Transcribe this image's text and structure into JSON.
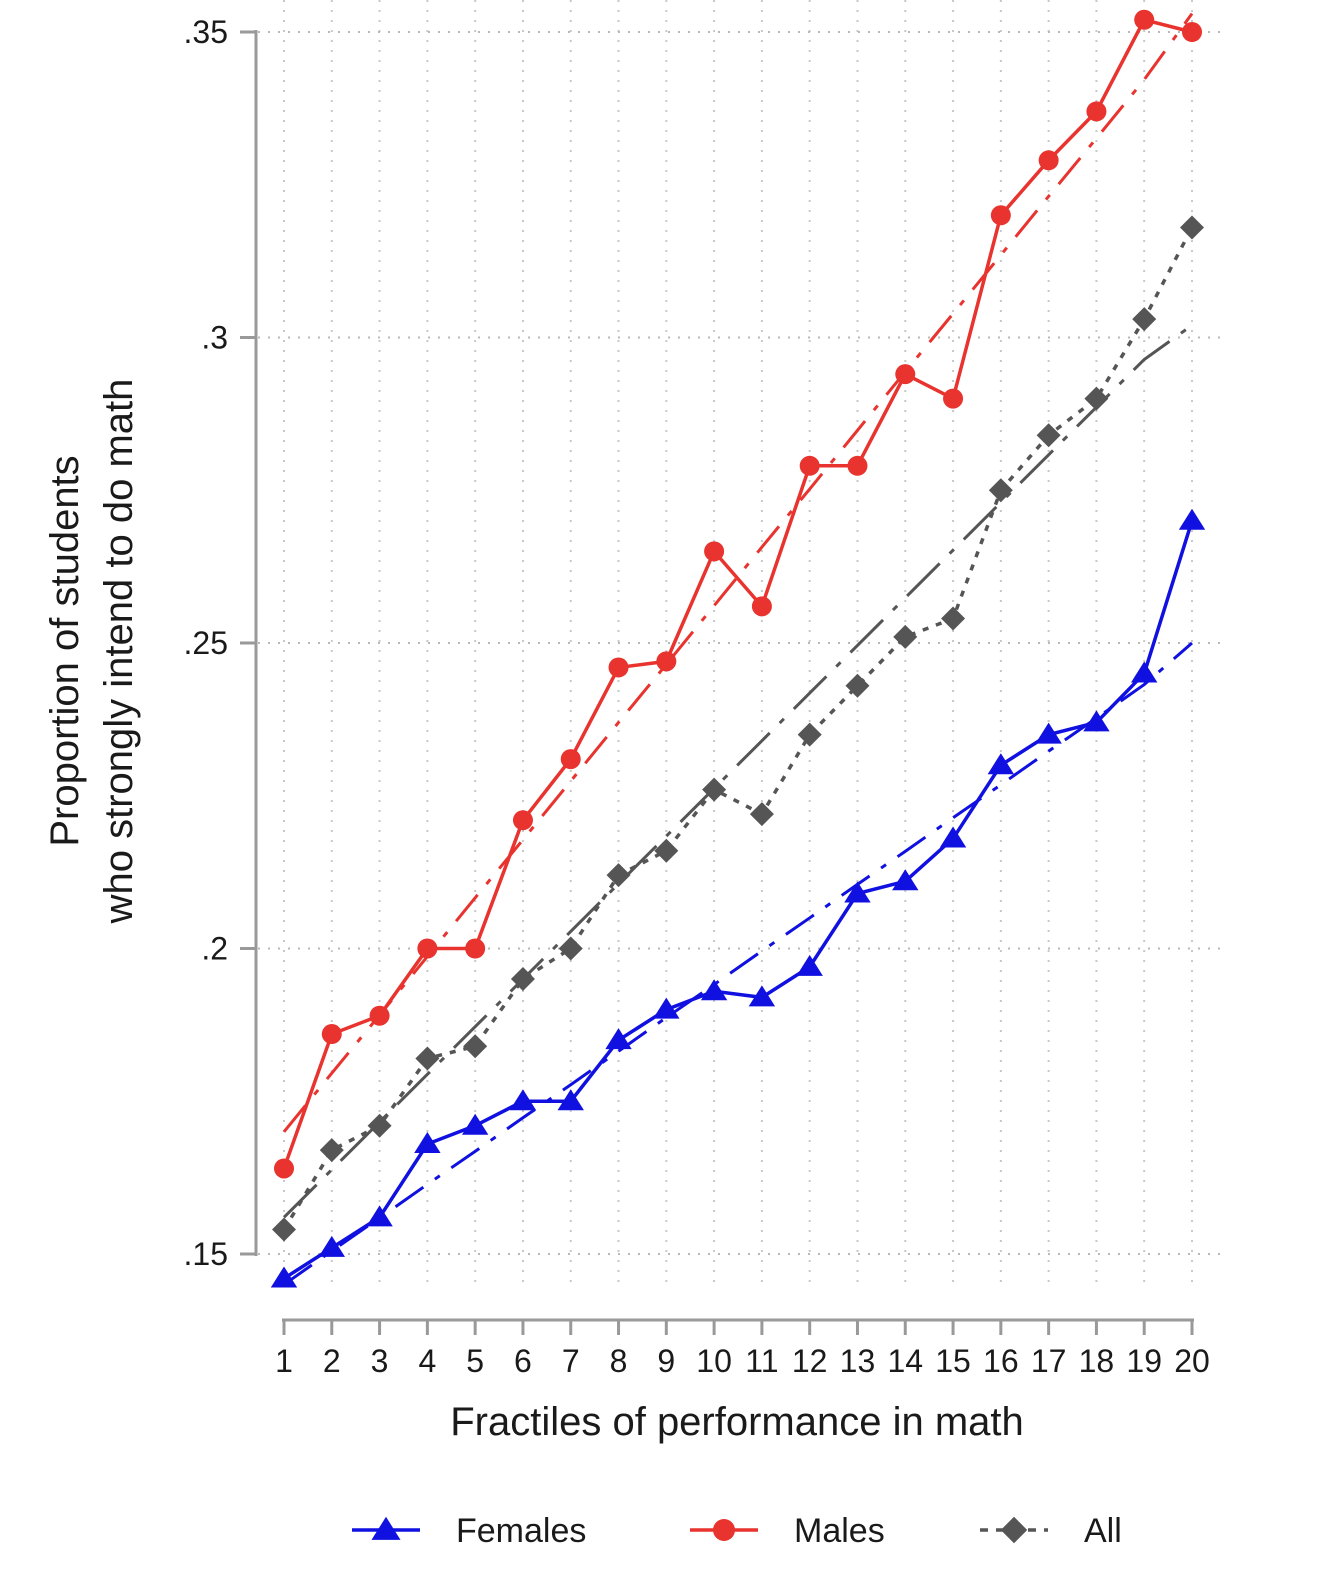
{
  "chart_data": {
    "type": "line",
    "title": "",
    "xlabel": "Fractiles of performance in math",
    "ylabel_lines": [
      "Proportion of students",
      "who strongly intend to do math"
    ],
    "x": [
      1,
      2,
      3,
      4,
      5,
      6,
      7,
      8,
      9,
      10,
      11,
      12,
      13,
      14,
      15,
      16,
      17,
      18,
      19,
      20
    ],
    "x_tick_labels": [
      "1",
      "2",
      "3",
      "4",
      "5",
      "6",
      "7",
      "8",
      "9",
      "10",
      "11",
      "12",
      "13",
      "14",
      "15",
      "16",
      "17",
      "18",
      "19",
      "20"
    ],
    "y_ticks": [
      0.15,
      0.2,
      0.25,
      0.3,
      0.35
    ],
    "y_tick_labels": [
      ".15",
      ".2",
      ".25",
      ".3",
      ".35"
    ],
    "ylim": [
      0.145,
      0.355
    ],
    "xlim": [
      1,
      20
    ],
    "grid": true,
    "legend_position": "bottom",
    "series": [
      {
        "name": "Females",
        "color": "#1010e0",
        "marker": "triangle",
        "values": [
          0.146,
          0.151,
          0.156,
          0.168,
          0.171,
          0.175,
          0.175,
          0.185,
          0.19,
          0.193,
          0.192,
          0.197,
          0.209,
          0.211,
          0.218,
          0.23,
          0.235,
          0.237,
          0.245,
          0.27
        ],
        "fit": [
          0.145,
          0.1505,
          0.1559,
          0.1614,
          0.1668,
          0.1723,
          0.1777,
          0.1832,
          0.1887,
          0.1941,
          0.1996,
          0.205,
          0.2105,
          0.2159,
          0.2214,
          0.2268,
          0.2323,
          0.2377,
          0.2432,
          0.25
        ]
      },
      {
        "name": "Males",
        "color": "#e8332e",
        "marker": "circle",
        "values": [
          0.164,
          0.186,
          0.189,
          0.2,
          0.2,
          0.221,
          0.231,
          0.246,
          0.247,
          0.265,
          0.256,
          0.279,
          0.279,
          0.294,
          0.29,
          0.32,
          0.329,
          0.337,
          0.352,
          0.35
        ],
        "fit": [
          0.17,
          0.1796,
          0.1891,
          0.1987,
          0.2083,
          0.2178,
          0.2274,
          0.237,
          0.2465,
          0.2561,
          0.2657,
          0.2752,
          0.2848,
          0.2944,
          0.3039,
          0.3135,
          0.3231,
          0.3326,
          0.3422,
          0.353
        ]
      },
      {
        "name": "All",
        "color": "#555555",
        "marker": "diamond",
        "values": [
          0.154,
          0.167,
          0.171,
          0.182,
          0.184,
          0.195,
          0.2,
          0.212,
          0.216,
          0.226,
          0.222,
          0.235,
          0.243,
          0.251,
          0.254,
          0.275,
          0.284,
          0.29,
          0.303,
          0.318
        ],
        "fit": [
          0.156,
          0.1638,
          0.1716,
          0.1794,
          0.1872,
          0.195,
          0.2028,
          0.2106,
          0.2184,
          0.2262,
          0.234,
          0.2418,
          0.2496,
          0.2574,
          0.2652,
          0.273,
          0.2808,
          0.2886,
          0.2964,
          0.302
        ]
      }
    ]
  }
}
